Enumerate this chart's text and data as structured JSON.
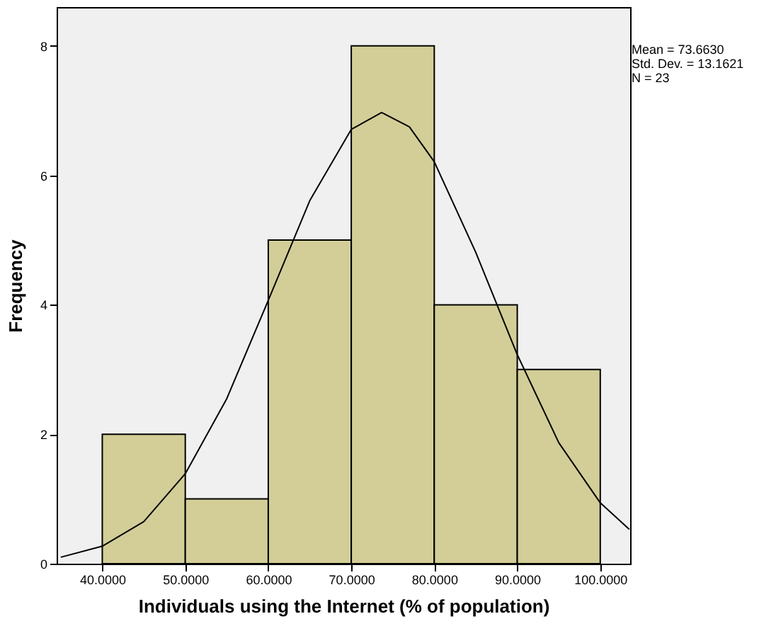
{
  "chart_data": {
    "type": "histogram",
    "xlabel": "Individuals using the Internet (% of population)",
    "ylabel": "Frequency",
    "bins": [
      40,
      50,
      60,
      70,
      80,
      90,
      100
    ],
    "values": [
      2,
      1,
      5,
      8,
      4,
      3
    ],
    "color": "#d3ce97",
    "series": [
      {
        "type": "line",
        "color": "#000000",
        "x": [
          35,
          40,
          45,
          50,
          55,
          60,
          65,
          70,
          73.66,
          77,
          80,
          85,
          90,
          95,
          100,
          103.5
        ],
        "values": [
          0.1,
          0.27,
          0.65,
          1.39,
          2.55,
          4.07,
          5.61,
          6.71,
          6.97,
          6.75,
          6.21,
          4.81,
          3.23,
          1.87,
          0.94,
          0.53
        ]
      }
    ],
    "xlim": [
      34.5,
      103.6
    ],
    "ylim": [
      0,
      8.6
    ],
    "xticks": [
      {
        "value": 40,
        "label": "40.0000"
      },
      {
        "value": 50,
        "label": "50.0000"
      },
      {
        "value": 60,
        "label": "60.0000"
      },
      {
        "value": 70,
        "label": "70.0000"
      },
      {
        "value": 80,
        "label": "80.0000"
      },
      {
        "value": 90,
        "label": "90.0000"
      },
      {
        "value": 100,
        "label": "100.0000"
      }
    ],
    "yticks": [
      0,
      2,
      4,
      6,
      8
    ],
    "annotations": [
      "Mean = 73.6630",
      "Std. Dev. = 13.1621",
      "N = 23"
    ]
  }
}
